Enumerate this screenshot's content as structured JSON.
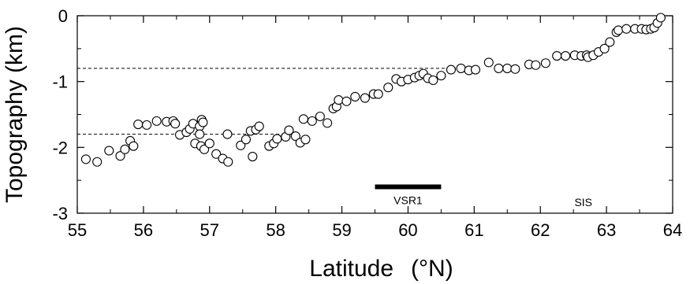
{
  "chart_data": {
    "type": "scatter",
    "xlabel": "Latitude",
    "xlabel_unit": "(°N)",
    "ylabel": "Topography  (km)",
    "xlim": [
      55,
      64
    ],
    "ylim": [
      -3,
      0
    ],
    "x_ticks": [
      "55",
      "56",
      "57",
      "58",
      "59",
      "60",
      "61",
      "62",
      "63",
      "64"
    ],
    "y_ticks": [
      "0",
      "-1",
      "-2",
      "-3"
    ],
    "grid": false,
    "reference_lines": [
      {
        "y": -0.8,
        "x_end": 61.0,
        "style": "dashed"
      },
      {
        "y": -1.8,
        "x_end": 58.3,
        "style": "dashed"
      }
    ],
    "segment": {
      "label": "VSR1",
      "x_start": 59.5,
      "x_end": 60.5,
      "y": -2.6
    },
    "annotations": [
      {
        "text": "SIS",
        "x": 62.65,
        "y": -2.83
      }
    ],
    "points": [
      {
        "x": 55.13,
        "y": -2.18
      },
      {
        "x": 55.3,
        "y": -2.22
      },
      {
        "x": 55.48,
        "y": -2.05
      },
      {
        "x": 55.65,
        "y": -2.13
      },
      {
        "x": 55.72,
        "y": -2.03
      },
      {
        "x": 55.8,
        "y": -1.9
      },
      {
        "x": 55.85,
        "y": -1.98
      },
      {
        "x": 55.92,
        "y": -1.65
      },
      {
        "x": 56.05,
        "y": -1.66
      },
      {
        "x": 56.2,
        "y": -1.6
      },
      {
        "x": 56.35,
        "y": -1.61
      },
      {
        "x": 56.45,
        "y": -1.6
      },
      {
        "x": 56.48,
        "y": -1.64
      },
      {
        "x": 56.55,
        "y": -1.81
      },
      {
        "x": 56.65,
        "y": -1.77
      },
      {
        "x": 56.7,
        "y": -1.72
      },
      {
        "x": 56.75,
        "y": -1.64
      },
      {
        "x": 56.78,
        "y": -1.94
      },
      {
        "x": 56.85,
        "y": -1.68
      },
      {
        "x": 56.85,
        "y": -1.8
      },
      {
        "x": 56.87,
        "y": -1.98
      },
      {
        "x": 56.88,
        "y": -1.58
      },
      {
        "x": 56.9,
        "y": -1.62
      },
      {
        "x": 56.92,
        "y": -2.03
      },
      {
        "x": 57.0,
        "y": -1.94
      },
      {
        "x": 57.1,
        "y": -2.1
      },
      {
        "x": 57.2,
        "y": -2.17
      },
      {
        "x": 57.27,
        "y": -1.8
      },
      {
        "x": 57.28,
        "y": -2.22
      },
      {
        "x": 57.47,
        "y": -1.97
      },
      {
        "x": 57.55,
        "y": -1.88
      },
      {
        "x": 57.62,
        "y": -1.75
      },
      {
        "x": 57.65,
        "y": -2.14
      },
      {
        "x": 57.7,
        "y": -1.73
      },
      {
        "x": 57.75,
        "y": -1.68
      },
      {
        "x": 57.9,
        "y": -1.98
      },
      {
        "x": 57.97,
        "y": -1.94
      },
      {
        "x": 58.02,
        "y": -1.87
      },
      {
        "x": 58.15,
        "y": -1.84
      },
      {
        "x": 58.2,
        "y": -1.74
      },
      {
        "x": 58.3,
        "y": -1.83
      },
      {
        "x": 58.37,
        "y": -1.93
      },
      {
        "x": 58.42,
        "y": -1.57
      },
      {
        "x": 58.45,
        "y": -1.88
      },
      {
        "x": 58.55,
        "y": -1.6
      },
      {
        "x": 58.67,
        "y": -1.53
      },
      {
        "x": 58.78,
        "y": -1.63
      },
      {
        "x": 58.87,
        "y": -1.41
      },
      {
        "x": 58.92,
        "y": -1.38
      },
      {
        "x": 58.95,
        "y": -1.28
      },
      {
        "x": 59.07,
        "y": -1.3
      },
      {
        "x": 59.2,
        "y": -1.23
      },
      {
        "x": 59.35,
        "y": -1.25
      },
      {
        "x": 59.48,
        "y": -1.19
      },
      {
        "x": 59.55,
        "y": -1.19
      },
      {
        "x": 59.7,
        "y": -1.09
      },
      {
        "x": 59.82,
        "y": -0.96
      },
      {
        "x": 59.9,
        "y": -1.0
      },
      {
        "x": 60.0,
        "y": -0.97
      },
      {
        "x": 60.1,
        "y": -0.94
      },
      {
        "x": 60.17,
        "y": -0.91
      },
      {
        "x": 60.23,
        "y": -0.88
      },
      {
        "x": 60.3,
        "y": -0.95
      },
      {
        "x": 60.38,
        "y": -0.98
      },
      {
        "x": 60.5,
        "y": -0.91
      },
      {
        "x": 60.65,
        "y": -0.82
      },
      {
        "x": 60.8,
        "y": -0.8
      },
      {
        "x": 60.92,
        "y": -0.83
      },
      {
        "x": 61.02,
        "y": -0.82
      },
      {
        "x": 61.22,
        "y": -0.71
      },
      {
        "x": 61.37,
        "y": -0.8
      },
      {
        "x": 61.5,
        "y": -0.8
      },
      {
        "x": 61.62,
        "y": -0.81
      },
      {
        "x": 61.83,
        "y": -0.74
      },
      {
        "x": 61.93,
        "y": -0.75
      },
      {
        "x": 62.08,
        "y": -0.72
      },
      {
        "x": 62.25,
        "y": -0.61
      },
      {
        "x": 62.38,
        "y": -0.61
      },
      {
        "x": 62.52,
        "y": -0.6
      },
      {
        "x": 62.62,
        "y": -0.61
      },
      {
        "x": 62.7,
        "y": -0.6
      },
      {
        "x": 62.72,
        "y": -0.63
      },
      {
        "x": 62.8,
        "y": -0.6
      },
      {
        "x": 62.88,
        "y": -0.55
      },
      {
        "x": 62.97,
        "y": -0.5
      },
      {
        "x": 63.05,
        "y": -0.4
      },
      {
        "x": 63.15,
        "y": -0.25
      },
      {
        "x": 63.18,
        "y": -0.22
      },
      {
        "x": 63.3,
        "y": -0.2
      },
      {
        "x": 63.43,
        "y": -0.2
      },
      {
        "x": 63.53,
        "y": -0.2
      },
      {
        "x": 63.6,
        "y": -0.21
      },
      {
        "x": 63.67,
        "y": -0.2
      },
      {
        "x": 63.72,
        "y": -0.18
      },
      {
        "x": 63.77,
        "y": -0.11
      },
      {
        "x": 63.82,
        "y": -0.03
      }
    ]
  }
}
